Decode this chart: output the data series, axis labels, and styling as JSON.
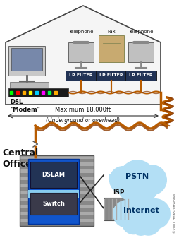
{
  "copyright": "©2001 HowStuffWorks",
  "background_color": "#ffffff",
  "labels": {
    "telephone1": "Telephone",
    "fax": "Fax",
    "telephone2": "Telephone",
    "lp_filter": "LP FILTER",
    "dsl_modem": "DSL\n\"Modem\"",
    "max_distance": "Maximum 18,000ft",
    "underground": "(Underground or overhead)",
    "central_office": "Central\nOffice",
    "switch": "Switch",
    "dslam": "DSLAM",
    "isp": "ISP",
    "pstn": "PSTN",
    "internet": "Internet"
  },
  "wire_color": "#b85c00",
  "arrow_color": "#333333",
  "cloud_color": "#b3dff5",
  "cloud_edge": "#5599cc",
  "filter_color": "#223355",
  "filter_text_color": "#ffffff",
  "label_fontsize": 7,
  "small_fontsize": 5.5,
  "tiny_fontsize": 4.5
}
